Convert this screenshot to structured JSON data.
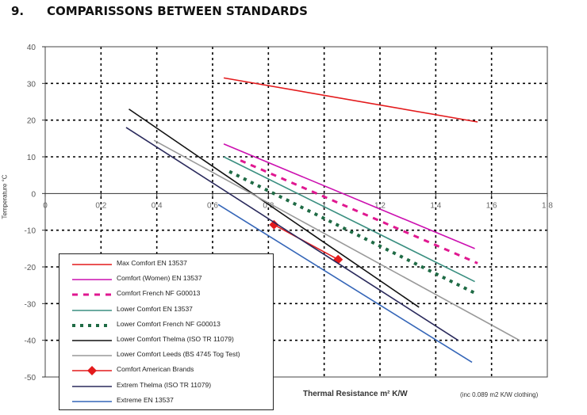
{
  "page": {
    "section_number": "9.",
    "section_title": "COMPARISSONS BETWEEN STANDARDS"
  },
  "chart_data": {
    "type": "line",
    "title": "",
    "xlabel": "Thermal Resistance m² K/W",
    "xlabel_note": "(inc 0.089 m2 K/W clothing)",
    "ylabel": "Temperature °C",
    "xlim": [
      0,
      1.8
    ],
    "ylim": [
      -50,
      40
    ],
    "x_ticks": [
      0,
      0.2,
      0.4,
      0.6,
      0.8,
      1,
      1.2,
      1.4,
      1.6,
      1.8
    ],
    "x_tick_labels": [
      "0",
      "0.2",
      "0.4",
      "0.6",
      "0.8",
      "1",
      "1.2",
      "1.4",
      "1.6",
      "1.8"
    ],
    "y_ticks": [
      40,
      30,
      20,
      10,
      0,
      -10,
      -20,
      -30,
      -40,
      -50
    ],
    "y_tick_labels": [
      "40",
      "30",
      "20",
      "10",
      "0",
      "-10",
      "-20",
      "-30",
      "-40",
      "-50"
    ],
    "grid": true,
    "legend_position": "bottom-left",
    "series": [
      {
        "name": "Max Comfort EN 13537",
        "color": "#e31a1c",
        "style": "solid",
        "x": [
          0.64,
          1.55
        ],
        "y": [
          31.5,
          19.5
        ]
      },
      {
        "name": "Comfort (Women) EN 13537",
        "color": "#cc10b0",
        "style": "solid",
        "x": [
          0.64,
          1.54
        ],
        "y": [
          13.5,
          -15
        ]
      },
      {
        "name": "Comfort French NF G00013",
        "color": "#e01890",
        "style": "dashed",
        "x": [
          0.7,
          1.55
        ],
        "y": [
          9,
          -19
        ]
      },
      {
        "name": "Lower Comfort EN 13537",
        "color": "#3a8f80",
        "style": "solid",
        "x": [
          0.64,
          1.54
        ],
        "y": [
          10,
          -24
        ]
      },
      {
        "name": "Lower Comfort French NF G00013",
        "color": "#1f6b45",
        "style": "dotted",
        "x": [
          0.66,
          1.55
        ],
        "y": [
          6,
          -27.5
        ]
      },
      {
        "name": "Lower Comfort Thelma (ISO TR 11079)",
        "color": "#111111",
        "style": "solid",
        "x": [
          0.3,
          1.34
        ],
        "y": [
          23,
          -31
        ]
      },
      {
        "name": "Lower Comfort Leeds (BS 4745 Tog Test)",
        "color": "#999999",
        "style": "solid",
        "x": [
          0.39,
          1.7
        ],
        "y": [
          14.5,
          -40
        ]
      },
      {
        "name": "Comfort American Brands",
        "color": "#e31a1c",
        "style": "solid-diamond",
        "x": [
          0.82,
          1.05
        ],
        "y": [
          -8.5,
          -18
        ]
      },
      {
        "name": "Extrem Thelma (ISO TR 11079)",
        "color": "#2a2a5c",
        "style": "solid",
        "x": [
          0.29,
          1.48
        ],
        "y": [
          18,
          -40
        ]
      },
      {
        "name": "Extreme EN 13537",
        "color": "#3566b8",
        "style": "solid",
        "x": [
          0.62,
          1.53
        ],
        "y": [
          -3,
          -46
        ]
      }
    ]
  }
}
